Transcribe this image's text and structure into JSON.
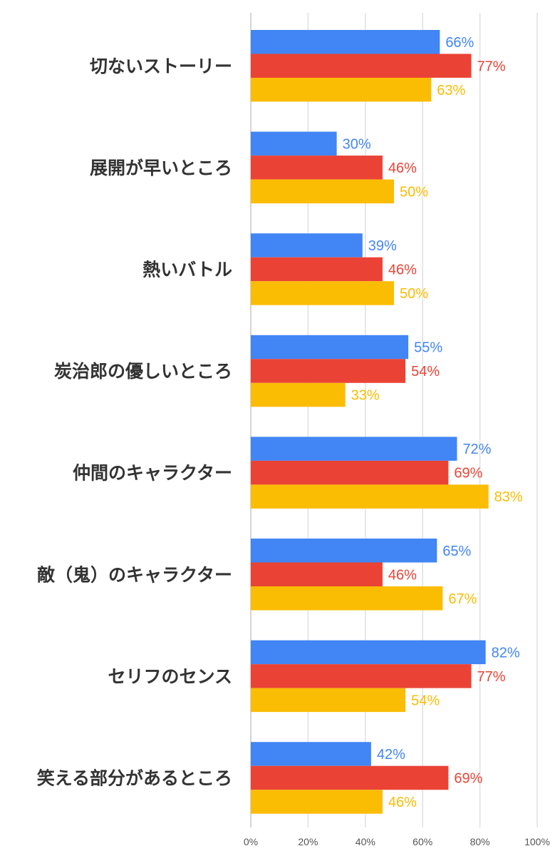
{
  "chart_data": {
    "type": "bar",
    "orientation": "horizontal",
    "categories": [
      "切ないストーリー",
      "展開が早いところ",
      "熱いバトル",
      "炭治郎の優しいところ",
      "仲間のキャラクター",
      "敵（鬼）のキャラクター",
      "セリフのセンス",
      "笑える部分があるところ"
    ],
    "series": [
      {
        "color": "#4285F4",
        "values": [
          66,
          30,
          39,
          55,
          72,
          65,
          82,
          42
        ],
        "labels": [
          "66%",
          "30%",
          "39%",
          "55%",
          "72%",
          "65%",
          "82%",
          "42%"
        ]
      },
      {
        "color": "#EA4335",
        "values": [
          77,
          46,
          46,
          54,
          69,
          46,
          77,
          69
        ],
        "labels": [
          "77%",
          "46%",
          "46%",
          "54%",
          "69%",
          "46%",
          "77%",
          "69%"
        ]
      },
      {
        "color": "#FBBC04",
        "values": [
          63,
          50,
          50,
          33,
          83,
          67,
          54,
          46
        ],
        "labels": [
          "63%",
          "50%",
          "50%",
          "33%",
          "83%",
          "67%",
          "54%",
          "46%"
        ]
      }
    ],
    "xlim": [
      0,
      100
    ],
    "xticks": [
      "0%",
      "20%",
      "40%",
      "60%",
      "80%",
      "100%"
    ],
    "grid": true,
    "legend": "none"
  }
}
